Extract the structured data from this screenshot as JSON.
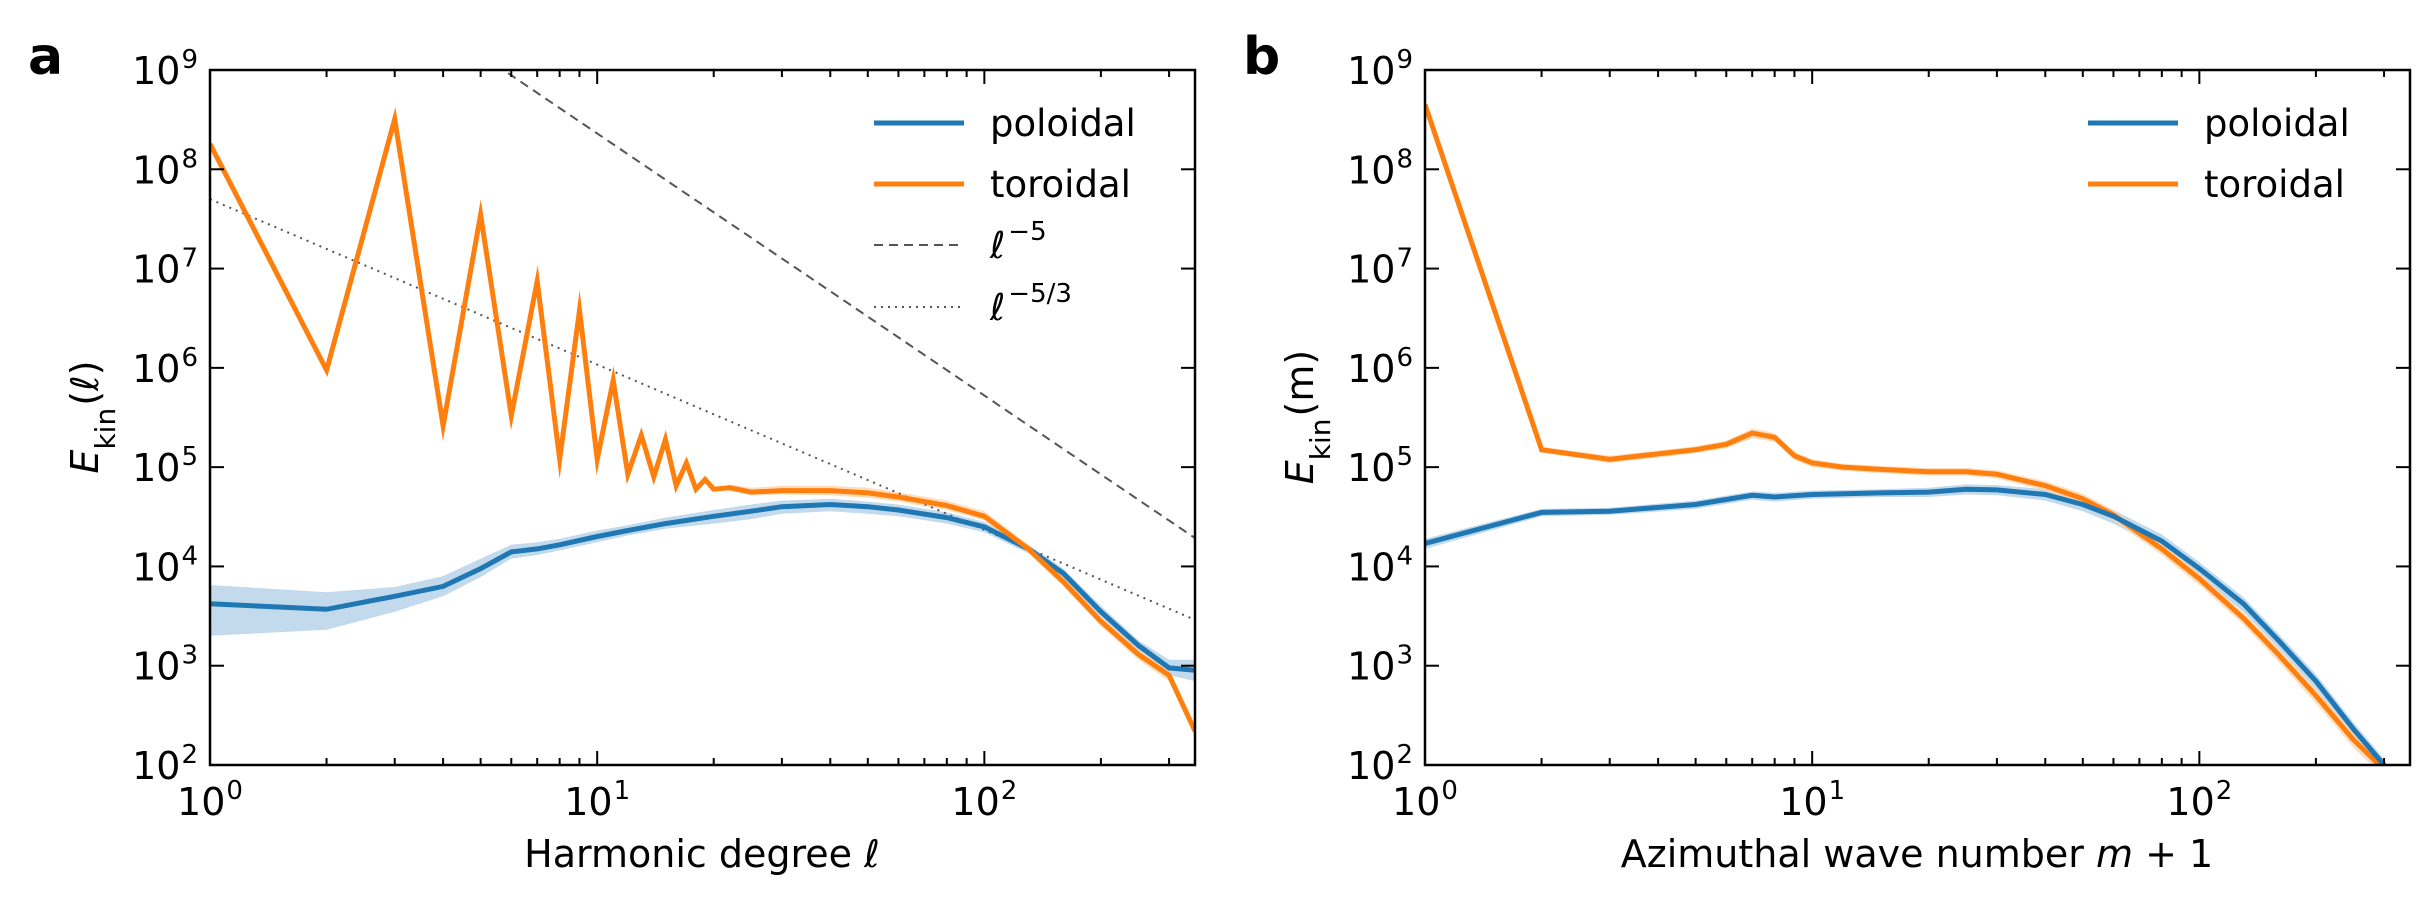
{
  "figure": {
    "panels": [
      "a",
      "b"
    ]
  },
  "colors": {
    "poloidal": "#1f77b4",
    "toroidal": "#ff7f0e",
    "poloidal_band": "#aecde6",
    "toroidal_band": "#ffd1a6",
    "ref_line": "#555555"
  },
  "chart_data": [
    {
      "panel": "a",
      "type": "line",
      "xscale": "log",
      "yscale": "log",
      "xlim": [
        1,
        350
      ],
      "ylim": [
        100,
        1000000000
      ],
      "xticks": [
        {
          "base": "10",
          "exp": "0"
        },
        {
          "base": "10",
          "exp": "1"
        },
        {
          "base": "10",
          "exp": "2"
        }
      ],
      "yticks": [
        {
          "base": "10",
          "exp": "2"
        },
        {
          "base": "10",
          "exp": "3"
        },
        {
          "base": "10",
          "exp": "4"
        },
        {
          "base": "10",
          "exp": "5"
        },
        {
          "base": "10",
          "exp": "6"
        },
        {
          "base": "10",
          "exp": "7"
        },
        {
          "base": "10",
          "exp": "8"
        },
        {
          "base": "10",
          "exp": "9"
        }
      ],
      "xlabel": "Harmonic degree ℓ",
      "ylabel": {
        "main": "E",
        "sub": "kin",
        "arg": "(ℓ)"
      },
      "legend_position": "top-right",
      "series": [
        {
          "name": "poloidal",
          "x": [
            1,
            2,
            3,
            4,
            5,
            6,
            7,
            8,
            10,
            12,
            15,
            20,
            25,
            30,
            40,
            50,
            60,
            80,
            100,
            130,
            160,
            200,
            250,
            300,
            350
          ],
          "y": [
            4200,
            3700,
            5000,
            6300,
            9500,
            14000,
            15000,
            16500,
            20000,
            23000,
            27000,
            32000,
            36000,
            40000,
            42000,
            40000,
            37000,
            31000,
            25000,
            15000,
            8500,
            3500,
            1600,
            950,
            900
          ],
          "band_lower": [
            2000,
            2300,
            3500,
            5000,
            7800,
            12000,
            13000,
            14500,
            17500,
            20500,
            24000,
            27000,
            30000,
            34000,
            36000,
            34000,
            32000,
            27000,
            22000,
            13500,
            7600,
            3100,
            1400,
            800,
            700
          ],
          "band_upper": [
            6500,
            5500,
            6200,
            8000,
            12000,
            16500,
            17500,
            19000,
            23000,
            26000,
            31000,
            37000,
            42000,
            46000,
            48000,
            45000,
            42000,
            35000,
            28000,
            16500,
            9500,
            4000,
            1800,
            1150,
            1150
          ]
        },
        {
          "name": "toroidal",
          "x": [
            1,
            2,
            3,
            4,
            5,
            6,
            7,
            8,
            9,
            10,
            11,
            12,
            13,
            14,
            15,
            16,
            17,
            18,
            19,
            20,
            22,
            25,
            30,
            40,
            50,
            60,
            80,
            100,
            130,
            160,
            200,
            250,
            300,
            350
          ],
          "y": [
            180000000,
            950000,
            320000000,
            260000,
            35000000,
            330000,
            7500000,
            120000,
            3800000,
            120000,
            750000,
            85000,
            210000,
            80000,
            190000,
            65000,
            110000,
            60000,
            75000,
            60000,
            62000,
            56000,
            58000,
            58000,
            55000,
            50000,
            41000,
            32000,
            15000,
            7000,
            2800,
            1300,
            800,
            220
          ],
          "band_lower": [
            180000000,
            950000,
            320000000,
            260000,
            35000000,
            330000,
            7500000,
            120000,
            3800000,
            120000,
            750000,
            85000,
            210000,
            80000,
            190000,
            65000,
            110000,
            60000,
            75000,
            60000,
            58000,
            52000,
            53000,
            52000,
            49000,
            45000,
            37000,
            29000,
            13500,
            6300,
            2500,
            1150,
            700,
            190
          ],
          "band_upper": [
            180000000,
            950000,
            320000000,
            260000,
            35000000,
            330000,
            7500000,
            120000,
            3800000,
            120000,
            750000,
            85000,
            210000,
            80000,
            190000,
            65000,
            110000,
            60000,
            75000,
            60000,
            67000,
            62000,
            65000,
            65000,
            62000,
            56000,
            46000,
            36000,
            16500,
            7800,
            3100,
            1450,
            900,
            250
          ]
        },
        {
          "name": "ℓ^-5",
          "label_base": "ℓ",
          "label_exp": "−5",
          "style": "dashed",
          "x": [
            1,
            350
          ],
          "y": [
            100000000000,
            19300
          ]
        },
        {
          "name": "ℓ^-5/3",
          "label_base": "ℓ",
          "label_exp": "−5/3",
          "style": "dotted",
          "x": [
            1,
            350
          ],
          "y": [
            50000000,
            2900
          ]
        }
      ]
    },
    {
      "panel": "b",
      "type": "line",
      "xscale": "log",
      "yscale": "log",
      "xlim": [
        1,
        350
      ],
      "ylim": [
        100,
        1000000000
      ],
      "xticks": [
        {
          "base": "10",
          "exp": "0"
        },
        {
          "base": "10",
          "exp": "1"
        },
        {
          "base": "10",
          "exp": "2"
        }
      ],
      "yticks": [
        {
          "base": "10",
          "exp": "2"
        },
        {
          "base": "10",
          "exp": "3"
        },
        {
          "base": "10",
          "exp": "4"
        },
        {
          "base": "10",
          "exp": "5"
        },
        {
          "base": "10",
          "exp": "6"
        },
        {
          "base": "10",
          "exp": "7"
        },
        {
          "base": "10",
          "exp": "8"
        },
        {
          "base": "10",
          "exp": "9"
        }
      ],
      "xlabel": {
        "prefix": "Azimuthal wave number ",
        "math": "m",
        "suffix": " + 1"
      },
      "ylabel": {
        "main": "E",
        "sub": "kin",
        "arg": "(m)"
      },
      "legend_position": "top-right",
      "series": [
        {
          "name": "poloidal",
          "x": [
            1,
            2,
            3,
            5,
            7,
            8,
            10,
            15,
            20,
            25,
            30,
            40,
            50,
            60,
            80,
            100,
            130,
            160,
            200,
            250,
            300
          ],
          "y": [
            17000,
            35000,
            36000,
            42000,
            52000,
            50000,
            53000,
            55000,
            56000,
            60000,
            59000,
            53000,
            42000,
            32000,
            18000,
            9500,
            4200,
            1800,
            700,
            230,
            100
          ],
          "band_lower": [
            15000,
            32000,
            33000,
            38000,
            47000,
            45000,
            48000,
            50000,
            50000,
            53000,
            52000,
            46000,
            36000,
            27000,
            15000,
            8000,
            3500,
            1500,
            580,
            190,
            85
          ],
          "band_upper": [
            19000,
            38000,
            39000,
            46000,
            57000,
            55000,
            58000,
            60000,
            62000,
            67000,
            66000,
            60000,
            48000,
            37000,
            21000,
            11000,
            4900,
            2100,
            820,
            270,
            115
          ]
        },
        {
          "name": "toroidal",
          "x": [
            1,
            2,
            3,
            5,
            6,
            7,
            8,
            9,
            10,
            12,
            15,
            20,
            25,
            30,
            40,
            50,
            60,
            80,
            100,
            130,
            160,
            200,
            250,
            300
          ],
          "y": [
            450000000,
            150000,
            120000,
            150000,
            170000,
            220000,
            200000,
            130000,
            110000,
            100000,
            95000,
            90000,
            90000,
            85000,
            65000,
            48000,
            33000,
            15000,
            7500,
            3000,
            1300,
            500,
            180,
            90
          ],
          "band_lower": [
            450000000,
            140000,
            110000,
            138000,
            155000,
            195000,
            180000,
            118000,
            100000,
            92000,
            87000,
            82000,
            82000,
            77000,
            58000,
            42000,
            29000,
            13000,
            6500,
            2600,
            1100,
            420,
            150,
            75
          ],
          "band_upper": [
            450000000,
            160000,
            130000,
            162000,
            185000,
            245000,
            220000,
            142000,
            120000,
            108000,
            103000,
            98000,
            98000,
            93000,
            72000,
            54000,
            37000,
            17000,
            8500,
            3400,
            1500,
            580,
            210,
            105
          ]
        }
      ]
    }
  ]
}
